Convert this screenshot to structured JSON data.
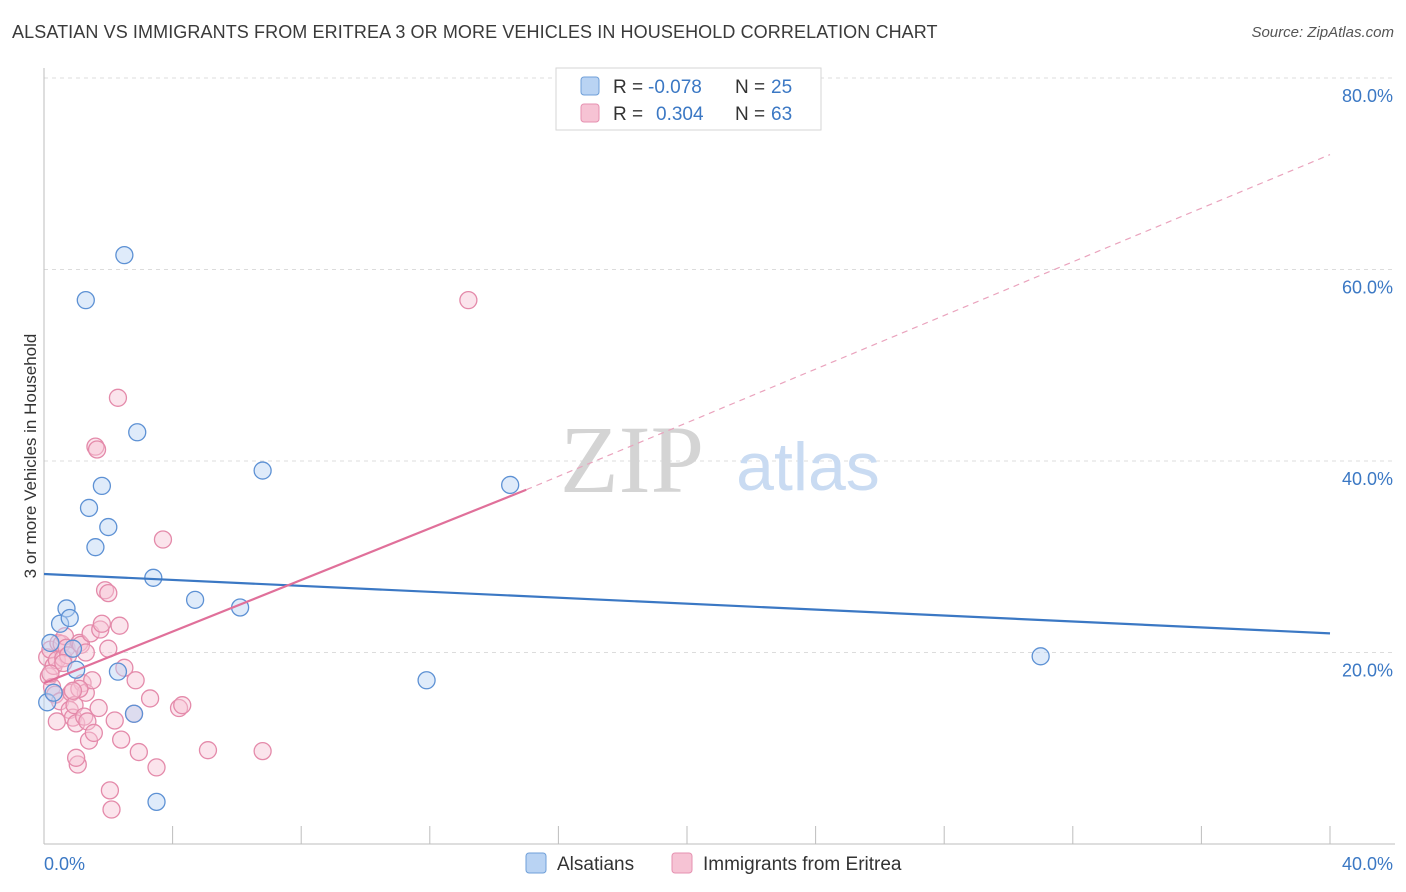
{
  "title": "ALSATIAN VS IMMIGRANTS FROM ERITREA 3 OR MORE VEHICLES IN HOUSEHOLD CORRELATION CHART",
  "source": "Source: ZipAtlas.com",
  "watermark": {
    "zip": "ZIP",
    "atlas": "atlas"
  },
  "colors": {
    "blue": "#3b78c4",
    "blue_fill": "#b9d3f3",
    "pink": "#e0709a",
    "pink_fill": "#f6c3d4",
    "grid": "#dcdcdc",
    "axis_label": "#3b78c4"
  },
  "legend_top": {
    "rows": [
      {
        "r_label": "R =",
        "r_value": "-0.078",
        "n_label": "N =",
        "n_value": "25"
      },
      {
        "r_label": "R =",
        "r_value": "0.304",
        "n_label": "N =",
        "n_value": "63"
      }
    ]
  },
  "legend_bottom": [
    "Alsatians",
    "Immigrants from Eritrea"
  ],
  "chart_data": {
    "type": "scatter",
    "title": "ALSATIAN VS IMMIGRANTS FROM ERITREA 3 OR MORE VEHICLES IN HOUSEHOLD CORRELATION CHART",
    "xlabel": "",
    "ylabel": "3 or more Vehicles in Household",
    "xlim": [
      0,
      40
    ],
    "ylim": [
      0,
      80
    ],
    "x_tick_labels": [
      "0.0%",
      "40.0%"
    ],
    "y_tick_labels": [
      "20.0%",
      "40.0%",
      "60.0%",
      "80.0%"
    ],
    "y_ticks": [
      20,
      40,
      60,
      80
    ],
    "series": [
      {
        "name": "Alsatians",
        "r": -0.078,
        "n": 25,
        "trend": {
          "x": [
            0,
            40
          ],
          "y": [
            28.2,
            22.0
          ],
          "dashed_to": null
        },
        "points": [
          [
            0.1,
            14.8
          ],
          [
            0.2,
            21.0
          ],
          [
            0.3,
            15.8
          ],
          [
            0.5,
            23.0
          ],
          [
            0.7,
            24.6
          ],
          [
            0.8,
            23.6
          ],
          [
            0.9,
            20.4
          ],
          [
            1.0,
            18.2
          ],
          [
            1.3,
            56.8
          ],
          [
            1.4,
            35.1
          ],
          [
            1.6,
            31.0
          ],
          [
            1.8,
            37.4
          ],
          [
            2.0,
            33.1
          ],
          [
            2.3,
            18.0
          ],
          [
            2.5,
            61.5
          ],
          [
            2.8,
            13.6
          ],
          [
            2.9,
            43.0
          ],
          [
            3.4,
            27.8
          ],
          [
            3.5,
            4.4
          ],
          [
            4.7,
            25.5
          ],
          [
            6.1,
            24.7
          ],
          [
            6.8,
            39.0
          ],
          [
            11.9,
            17.1
          ],
          [
            14.5,
            37.5
          ],
          [
            31.0,
            19.6
          ]
        ]
      },
      {
        "name": "Immigrants from Eritrea",
        "r": 0.304,
        "n": 63,
        "trend": {
          "x": [
            0,
            15.0
          ],
          "y": [
            16.8,
            37.0
          ],
          "dashed_to": [
            40,
            72.0
          ]
        },
        "points": [
          [
            0.1,
            19.5
          ],
          [
            0.15,
            17.5
          ],
          [
            0.2,
            20.3
          ],
          [
            0.25,
            16.4
          ],
          [
            0.3,
            18.6
          ],
          [
            0.35,
            15.6
          ],
          [
            0.4,
            19.2
          ],
          [
            0.45,
            21.0
          ],
          [
            0.5,
            14.9
          ],
          [
            0.55,
            20.9
          ],
          [
            0.6,
            19.4
          ],
          [
            0.65,
            21.7
          ],
          [
            0.7,
            20.5
          ],
          [
            0.75,
            19.7
          ],
          [
            0.8,
            14.0
          ],
          [
            0.85,
            15.8
          ],
          [
            0.9,
            13.2
          ],
          [
            0.95,
            14.5
          ],
          [
            1.0,
            12.6
          ],
          [
            1.05,
            8.3
          ],
          [
            1.1,
            21.0
          ],
          [
            1.15,
            20.8
          ],
          [
            1.2,
            16.8
          ],
          [
            1.25,
            13.3
          ],
          [
            1.3,
            15.8
          ],
          [
            1.35,
            12.8
          ],
          [
            1.4,
            10.8
          ],
          [
            1.45,
            22.0
          ],
          [
            1.5,
            17.1
          ],
          [
            1.55,
            11.6
          ],
          [
            1.6,
            41.5
          ],
          [
            1.65,
            41.2
          ],
          [
            1.7,
            14.2
          ],
          [
            1.75,
            22.4
          ],
          [
            1.8,
            23.0
          ],
          [
            1.9,
            26.5
          ],
          [
            2.0,
            26.2
          ],
          [
            2.05,
            5.6
          ],
          [
            2.1,
            3.6
          ],
          [
            2.2,
            12.9
          ],
          [
            2.3,
            46.6
          ],
          [
            2.35,
            22.8
          ],
          [
            2.4,
            10.9
          ],
          [
            2.5,
            18.4
          ],
          [
            2.8,
            13.6
          ],
          [
            2.85,
            17.1
          ],
          [
            2.95,
            9.6
          ],
          [
            3.3,
            15.2
          ],
          [
            3.5,
            8.0
          ],
          [
            3.7,
            31.8
          ],
          [
            4.2,
            14.2
          ],
          [
            4.3,
            14.5
          ],
          [
            5.1,
            9.8
          ],
          [
            6.8,
            9.7
          ],
          [
            13.2,
            56.8
          ],
          [
            0.2,
            17.8
          ],
          [
            0.4,
            12.8
          ],
          [
            0.6,
            18.9
          ],
          [
            1.0,
            9.0
          ],
          [
            1.3,
            20.0
          ],
          [
            2.0,
            20.4
          ],
          [
            1.1,
            16.2
          ],
          [
            0.9,
            16.0
          ]
        ]
      }
    ]
  }
}
